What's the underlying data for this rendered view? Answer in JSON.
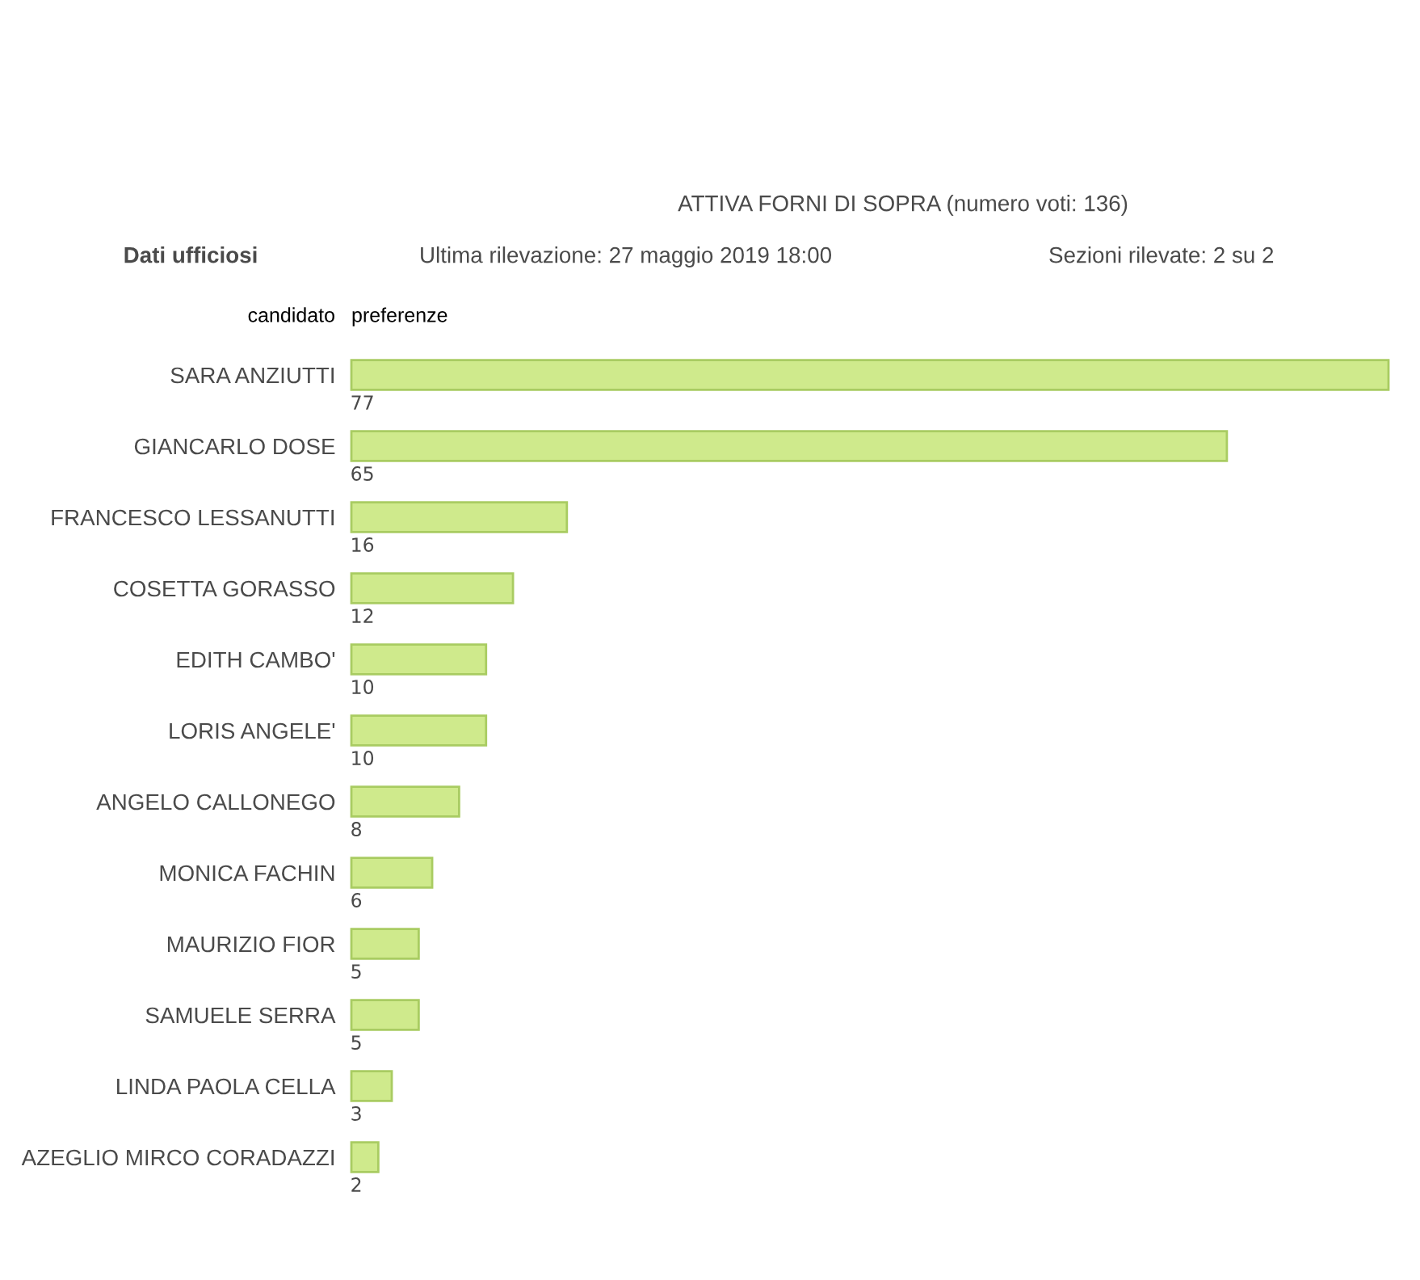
{
  "chart_data": {
    "type": "bar",
    "orientation": "horizontal",
    "title": "ATTIVA FORNI DI SOPRA (numero voti: 136)",
    "ylabel": "candidato",
    "xlabel": "preferenze",
    "annotations": [
      "Dati ufficiosi",
      "Ultima rilevazione: 27 maggio 2019 18:00",
      "Sezioni rilevate: 2 su 2"
    ],
    "categories": [
      "SARA ANZIUTTI",
      "GIANCARLO DOSE",
      "FRANCESCO LESSANUTTI",
      "COSETTA GORASSO",
      "EDITH CAMBO'",
      "LORIS ANGELE'",
      "ANGELO CALLONEGO",
      "MONICA FACHIN",
      "MAURIZIO FIOR",
      "SAMUELE SERRA",
      "LINDA PAOLA CELLA",
      "AZEGLIO MIRCO CORADAZZI"
    ],
    "values": [
      77,
      65,
      16,
      12,
      10,
      10,
      8,
      6,
      5,
      5,
      3,
      2
    ],
    "color": "#cfea8c",
    "data_labels": true,
    "tick_labels": "y"
  }
}
